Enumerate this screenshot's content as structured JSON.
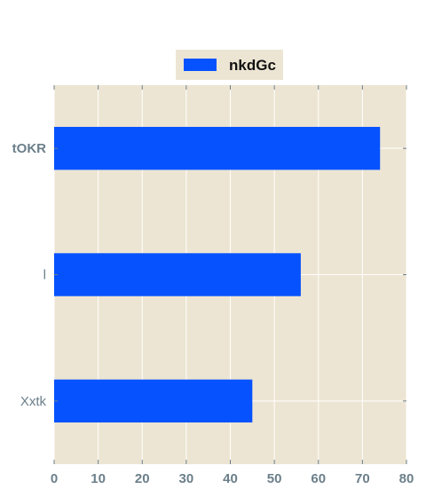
{
  "chart_data": {
    "type": "bar",
    "orientation": "horizontal",
    "categories": [
      "tOKR",
      "l",
      "Xxtk"
    ],
    "series": [
      {
        "name": "nkdGc",
        "values": [
          74,
          56,
          45
        ]
      }
    ],
    "xlim": [
      0,
      80
    ],
    "xticks": [
      "0",
      "10",
      "20",
      "30",
      "40",
      "50",
      "60",
      "70",
      "80"
    ],
    "grid": true,
    "legend_position": "top-center",
    "colors": {
      "bar": "#0652ff",
      "plot_background": "#ede5d3",
      "grid": "#ffffff",
      "tick_text": "#6b7f8a"
    }
  }
}
